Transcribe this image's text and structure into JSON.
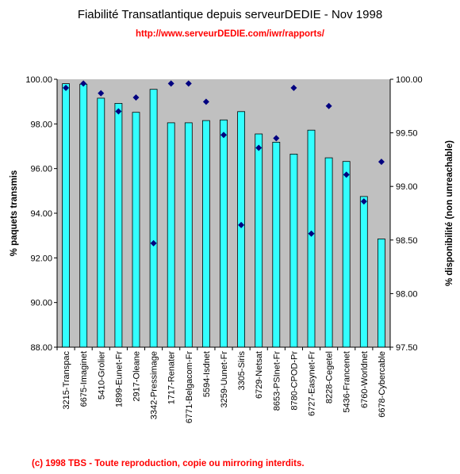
{
  "title": "Fiabilité Transatlantique depuis serveurDEDIE - Nov 1998",
  "subtitle": "http://www.serveurDEDIE.com/iwr/rapports/",
  "footer": "(c) 1998 TBS - Toute reproduction, copie ou mirroring interdits.",
  "colors": {
    "plot_bg": "#c0c0c0",
    "bar_fill": "#33ffff",
    "bar_stroke": "#000000",
    "marker": "#000080"
  },
  "chart_data": {
    "type": "bar",
    "categories": [
      "3215-Transpac",
      "6675-Imaginet",
      "5410-Grolier",
      "1899-Eunet-Fr",
      "2917-Oleane",
      "3342-Pressimage",
      "1717-Renater",
      "6771-Belgacom-Fr",
      "5594-Isdnet",
      "3259-Uunet-Fr",
      "3305-Siris",
      "6729-Netsat",
      "8653-PSInet-Fr",
      "8780-CPOD-Pr",
      "6727-Easynet-Fr",
      "8228-Cegetel",
      "5436-Francenet",
      "6760-Worldnet",
      "6678-Cybercable"
    ],
    "series": [
      {
        "kind": "bar",
        "axis": "left",
        "values": [
          99.8,
          99.78,
          99.15,
          98.92,
          98.52,
          99.55,
          98.05,
          98.05,
          98.15,
          98.18,
          98.55,
          97.55,
          97.18,
          96.65,
          97.72,
          96.48,
          96.32,
          94.75,
          92.85
        ]
      },
      {
        "kind": "scatter",
        "axis": "right",
        "values": [
          99.92,
          99.96,
          99.87,
          99.7,
          99.83,
          98.47,
          99.96,
          99.96,
          99.79,
          99.48,
          98.64,
          99.36,
          99.45,
          99.92,
          98.56,
          99.75,
          99.11,
          98.86,
          99.23
        ]
      }
    ],
    "ylabel": "% paquets transmis",
    "ylabel_right": "% disponibilité (non unreachable)",
    "ylim": [
      88,
      100
    ],
    "yticks": [
      "88.00",
      "90.00",
      "92.00",
      "94.00",
      "96.00",
      "98.00",
      "100.00"
    ],
    "ylim_right": [
      97.5,
      100
    ],
    "yticks_right": [
      "97.50",
      "98.00",
      "98.50",
      "99.00",
      "99.50",
      "100.00"
    ],
    "grid": false,
    "legend": "none"
  }
}
